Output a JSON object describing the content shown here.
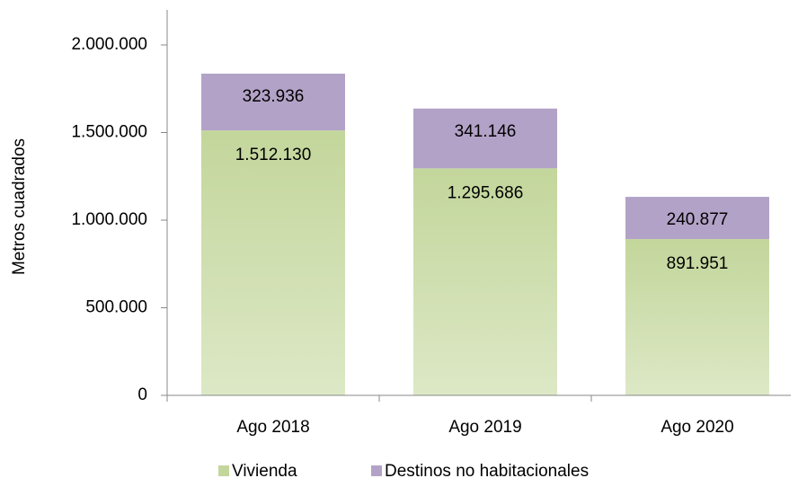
{
  "chart_data": {
    "type": "stacked_bar",
    "y_label": "Metros cuadrados",
    "categories": [
      "Ago 2018",
      "Ago 2019",
      "Ago 2020"
    ],
    "series": [
      {
        "name": "Vivienda",
        "color": "#c3d69b",
        "values": [
          1512130,
          1295686,
          891951
        ],
        "value_labels": [
          "1.512.130",
          "1.295.686",
          "891.951"
        ]
      },
      {
        "name": "Destinos no habitacionales",
        "color": "#b3a2c7",
        "values": [
          323936,
          341146,
          240877
        ],
        "value_labels": [
          "323.936",
          "341.146",
          "240.877"
        ]
      }
    ],
    "ylim": [
      0,
      2200000
    ],
    "yticks": [
      0,
      {
        "value": 500000,
        "label": "500.000"
      },
      {
        "value": 1000000,
        "label": "1.000.000"
      },
      {
        "value": 1500000,
        "label": "1.500.000"
      },
      {
        "value": 2000000,
        "label": "2.000.000"
      }
    ],
    "legend": "bottom"
  }
}
